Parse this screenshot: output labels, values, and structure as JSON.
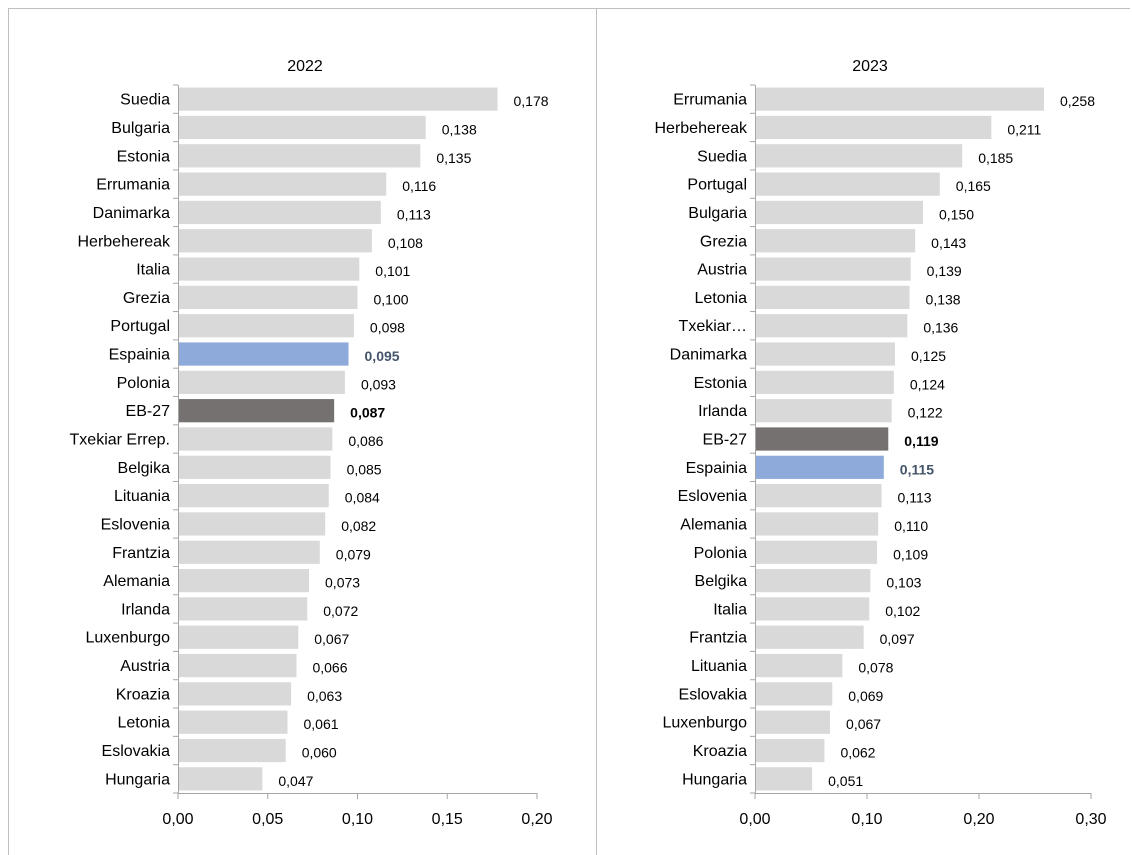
{
  "chart_data": [
    {
      "type": "bar",
      "orientation": "horizontal",
      "title": "2022",
      "xlim": [
        0,
        0.2
      ],
      "ticks": [
        0,
        0.05,
        0.1,
        0.15,
        0.2
      ],
      "tick_labels": [
        "0,00",
        "0,05",
        "0,10",
        "0,15",
        "0,20"
      ],
      "categories": [
        "Suedia",
        "Bulgaria",
        "Estonia",
        "Errumania",
        "Danimarka",
        "Herbehereak",
        "Italia",
        "Grezia",
        "Portugal",
        "Espainia",
        "Polonia",
        "EB-27",
        "Txekiar Errep.",
        "Belgika",
        "Lituania",
        "Eslovenia",
        "Frantzia",
        "Alemania",
        "Irlanda",
        "Luxenburgo",
        "Austria",
        "Kroazia",
        "Letonia",
        "Eslovakia",
        "Hungaria"
      ],
      "values": [
        0.178,
        0.138,
        0.135,
        0.116,
        0.113,
        0.108,
        0.101,
        0.1,
        0.098,
        0.095,
        0.093,
        0.087,
        0.086,
        0.085,
        0.084,
        0.082,
        0.079,
        0.073,
        0.072,
        0.067,
        0.066,
        0.063,
        0.061,
        0.06,
        0.047
      ],
      "value_labels": [
        "0,178",
        "0,138",
        "0,135",
        "0,116",
        "0,113",
        "0,108",
        "0,101",
        "0,100",
        "0,098",
        "0,095",
        "0,093",
        "0,087",
        "0,086",
        "0,085",
        "0,084",
        "0,082",
        "0,079",
        "0,073",
        "0,072",
        "0,067",
        "0,066",
        "0,063",
        "0,061",
        "0,060",
        "0,047"
      ],
      "highlight": {
        "Espainia": "spain",
        "EB-27": "eu"
      }
    },
    {
      "type": "bar",
      "orientation": "horizontal",
      "title": "2023",
      "xlim": [
        0,
        0.3
      ],
      "ticks": [
        0,
        0.1,
        0.2,
        0.3
      ],
      "tick_labels": [
        "0,00",
        "0,10",
        "0,20",
        "0,30"
      ],
      "categories": [
        "Errumania",
        "Herbehereak",
        "Suedia",
        "Portugal",
        "Bulgaria",
        "Grezia",
        "Austria",
        "Letonia",
        "Txekiar…",
        "Danimarka",
        "Estonia",
        "Irlanda",
        "EB-27",
        "Espainia",
        "Eslovenia",
        "Alemania",
        "Polonia",
        "Belgika",
        "Italia",
        "Frantzia",
        "Lituania",
        "Eslovakia",
        "Luxenburgo",
        "Kroazia",
        "Hungaria"
      ],
      "values": [
        0.258,
        0.211,
        0.185,
        0.165,
        0.15,
        0.143,
        0.139,
        0.138,
        0.136,
        0.125,
        0.124,
        0.122,
        0.119,
        0.115,
        0.113,
        0.11,
        0.109,
        0.103,
        0.102,
        0.097,
        0.078,
        0.069,
        0.067,
        0.062,
        0.051
      ],
      "value_labels": [
        "0,258",
        "0,211",
        "0,185",
        "0,165",
        "0,150",
        "0,143",
        "0,139",
        "0,138",
        "0,136",
        "0,125",
        "0,124",
        "0,122",
        "0,119",
        "0,115",
        "0,113",
        "0,110",
        "0,109",
        "0,103",
        "0,102",
        "0,097",
        "0,078",
        "0,069",
        "0,067",
        "0,062",
        "0,051"
      ],
      "highlight": {
        "Espainia": "spain",
        "EB-27": "eu"
      }
    }
  ],
  "colors": {
    "bar": "#d9d9d9",
    "spain": "#8eaadb",
    "eu": "#767171",
    "spain_label": "#44546a",
    "eu_label": "#000000",
    "axis": "#a6a6a6",
    "text": "#000000"
  }
}
